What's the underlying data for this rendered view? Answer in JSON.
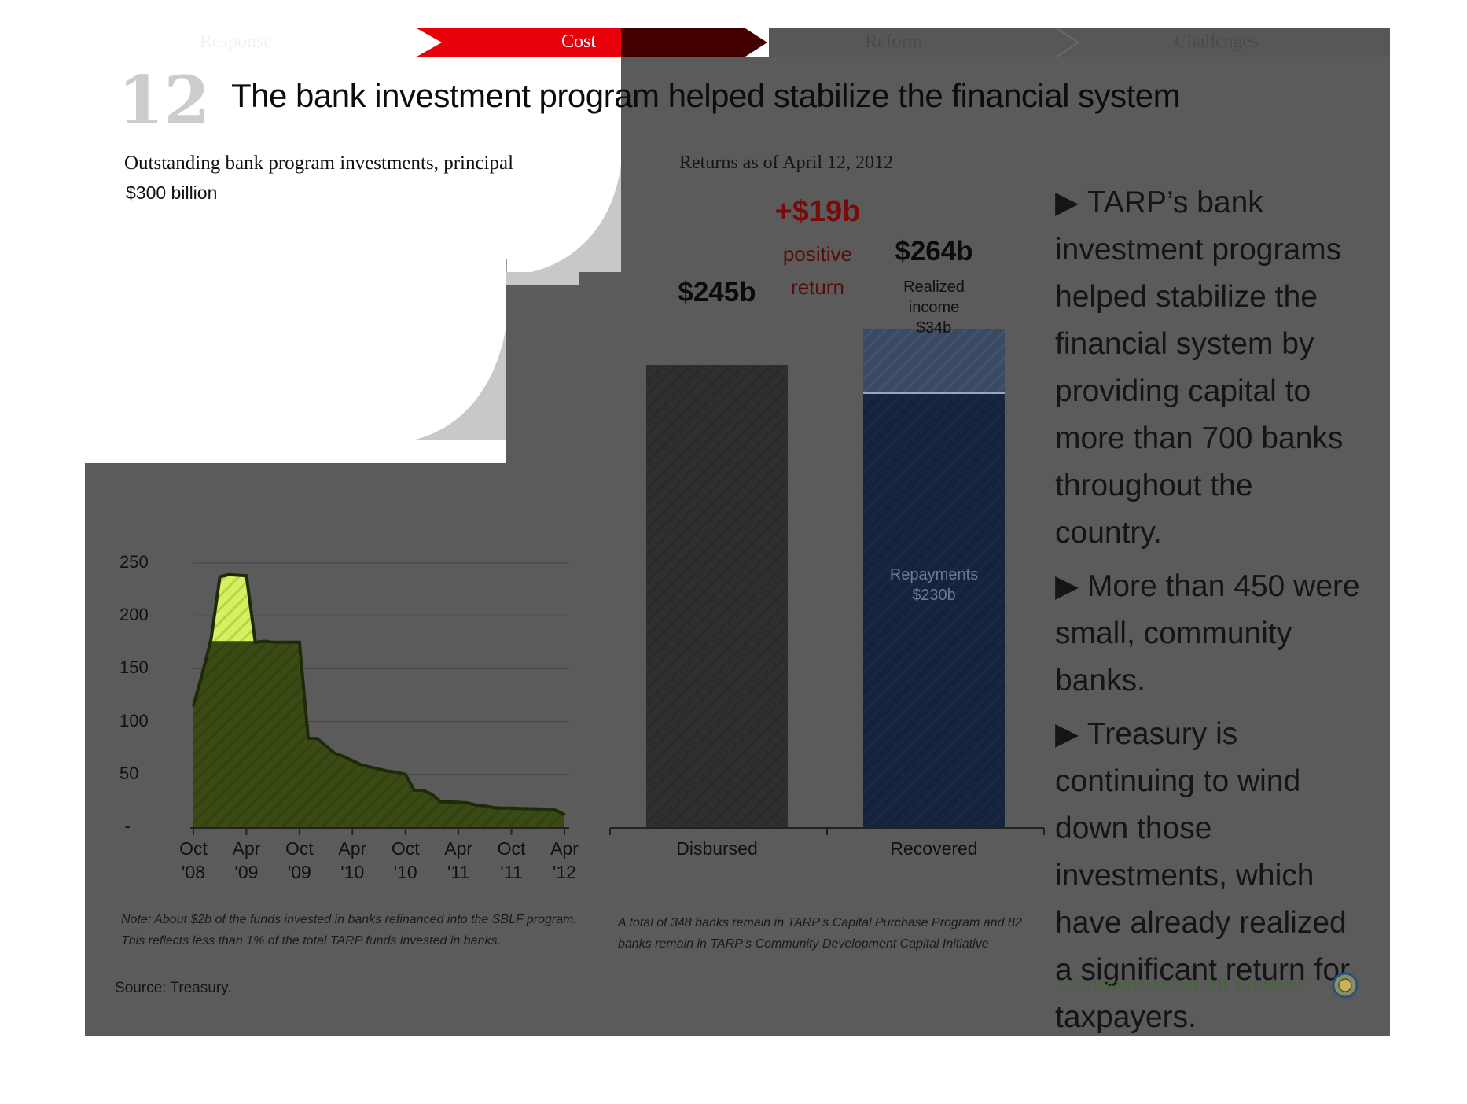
{
  "nav": {
    "tabs": [
      {
        "label": "Response",
        "active": false
      },
      {
        "label": "Cost",
        "active": true
      },
      {
        "label": "Reform",
        "active": false
      },
      {
        "label": "Challenges",
        "active": false
      }
    ]
  },
  "slide": {
    "number": "12",
    "title": "The bank investment program helped stabilize the financial system"
  },
  "left_chart": {
    "title": "Outstanding bank program investments, principal",
    "unit_label": "$300 billion",
    "note": "Note: About $2b of the funds invested in banks refinanced into the SBLF program. This reflects less than 1% of the total TARP funds invested in banks.",
    "source": "Source: Treasury."
  },
  "right_chart": {
    "title": "Returns as of April 12, 2012",
    "disbursed_label": "$245b",
    "recovered_label": "$264b",
    "delta_value": "+$19b",
    "delta_text_1": "positive",
    "delta_text_2": "return",
    "realized_line1": "Realized",
    "realized_line2": "income",
    "realized_line3": "$34b",
    "repay_line1": "Repayments",
    "repay_line2": "$230b",
    "note": "A total of 348 banks remain in TARP’s Capital Purchase Program and 82 banks remain in TARP’s Community Development Capital Initiative"
  },
  "bullets": [
    "TARP’s bank investment programs helped stabilize the financial system by providing capital to more than 700 banks throughout the country.",
    "More than 450 were small, community banks.",
    "Treasury is continuing to wind down those investments, which have already realized a significant return for taxpayers."
  ],
  "footer": {
    "org": "U.S. DEPARTMENT OF THE TREASURY",
    "seal_icon": "treasury-seal-icon"
  },
  "colors": {
    "accent_red": "#e8000b",
    "area_fill": "#3a4a14",
    "peak_fill": "#d6f060",
    "disbursed_bar": "#2f2f2f",
    "repayments_bar": "#16233c",
    "realized_bar": "#3b4a63",
    "positive_return": "#7a0b0b",
    "footer_green": "#3d6b2e"
  },
  "chart_data": [
    {
      "type": "area",
      "title": "Outstanding bank program investments, principal",
      "ylabel": "$300 billion",
      "ylim": [
        0,
        300
      ],
      "yticks": [
        "-",
        "50",
        "100",
        "150",
        "200",
        "250"
      ],
      "ytick_values": [
        0,
        50,
        100,
        150,
        200,
        250
      ],
      "xticks": [
        {
          "l1": "Oct",
          "l2": "'08",
          "x": 0
        },
        {
          "l1": "Apr",
          "l2": "'09",
          "x": 6
        },
        {
          "l1": "Oct",
          "l2": "'09",
          "x": 12
        },
        {
          "l1": "Apr",
          "l2": "'10",
          "x": 18
        },
        {
          "l1": "Oct",
          "l2": "'10",
          "x": 24
        },
        {
          "l1": "Apr",
          "l2": "'11",
          "x": 30
        },
        {
          "l1": "Oct",
          "l2": "'11",
          "x": 36
        },
        {
          "l1": "Apr",
          "l2": "'12",
          "x": 42
        }
      ],
      "x_units": "months since Oct 2008",
      "series": [
        {
          "points": [
            [
              0,
              115
            ],
            [
              1,
              145
            ],
            [
              2,
              178
            ],
            [
              3,
              237
            ],
            [
              4,
              239
            ],
            [
              5,
              238.5
            ],
            [
              6,
              238
            ],
            [
              7,
              175
            ],
            [
              8,
              176
            ],
            [
              9,
              175
            ],
            [
              10,
              175
            ],
            [
              11,
              175
            ],
            [
              12,
              175
            ],
            [
              13,
              84
            ],
            [
              14,
              84
            ],
            [
              15,
              77
            ],
            [
              16,
              70
            ],
            [
              17,
              67
            ],
            [
              18,
              63
            ],
            [
              19,
              59
            ],
            [
              20,
              57
            ],
            [
              21,
              55
            ],
            [
              22,
              53
            ],
            [
              23,
              52
            ],
            [
              24,
              50
            ],
            [
              25,
              35
            ],
            [
              26,
              35
            ],
            [
              27,
              31
            ],
            [
              28,
              24
            ],
            [
              29,
              24
            ],
            [
              30,
              23.5
            ],
            [
              31,
              23
            ],
            [
              32,
              21
            ],
            [
              33,
              20
            ],
            [
              34,
              18.5
            ],
            [
              35,
              18
            ],
            [
              36,
              18
            ],
            [
              37,
              17.7
            ],
            [
              38,
              17.5
            ],
            [
              39,
              17.3
            ],
            [
              40,
              17
            ],
            [
              41,
              16
            ],
            [
              42,
              12
            ]
          ]
        }
      ],
      "highlight": {
        "from": 2,
        "to": 7,
        "label": "peak"
      }
    },
    {
      "type": "bar",
      "title": "Returns as of April 12, 2012",
      "categories": [
        "Disbursed",
        "Recovered"
      ],
      "ylim": [
        0,
        300
      ],
      "series": [
        {
          "name": "Repayments",
          "values": [
            245,
            230
          ]
        },
        {
          "name": "Realized income",
          "values": [
            0,
            34
          ]
        }
      ],
      "totals": [
        245,
        264
      ],
      "annotation": "+$19b positive return"
    }
  ]
}
